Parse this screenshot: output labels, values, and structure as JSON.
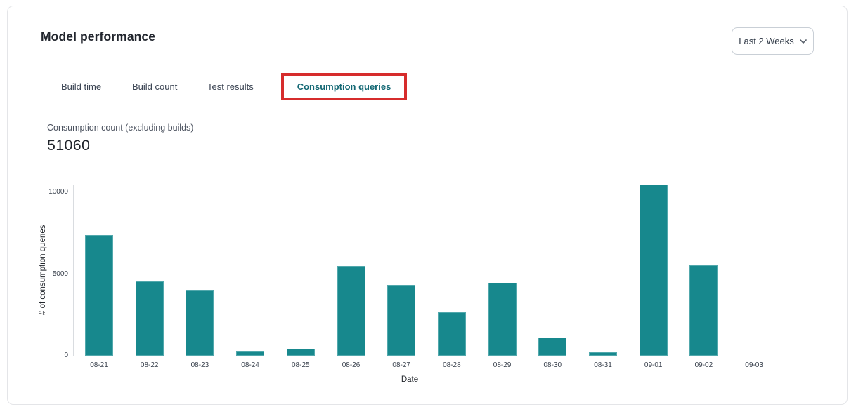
{
  "page": {
    "title": "Model performance"
  },
  "period_selector": {
    "value": "Last 2 Weeks"
  },
  "tabs": [
    {
      "label": "Build time",
      "active": false
    },
    {
      "label": "Build count",
      "active": false
    },
    {
      "label": "Test results",
      "active": false
    },
    {
      "label": "Consumption queries",
      "active": true,
      "annotated": "red-box"
    }
  ],
  "metric": {
    "label": "Consumption count (excluding builds)",
    "value": "51060"
  },
  "chart_data": {
    "type": "bar",
    "categories": [
      "08-21",
      "08-22",
      "08-23",
      "08-24",
      "08-25",
      "08-26",
      "08-27",
      "08-28",
      "08-29",
      "08-30",
      "08-31",
      "09-01",
      "09-02",
      "09-03"
    ],
    "values": [
      7400,
      4570,
      4030,
      315,
      410,
      5490,
      4355,
      2670,
      4460,
      1130,
      200,
      10480,
      5550,
      0
    ],
    "xlabel": "Date",
    "ylabel": "# of consumption queries",
    "yticks": [
      0,
      5000,
      10000
    ],
    "ylim": [
      0,
      10520
    ],
    "grid": false,
    "legend": false,
    "bar_color": "#17888D"
  },
  "colors": {
    "bar_teal": "#17888D",
    "active_tab_teal": "#136874",
    "annotation_red": "#D62C2C"
  }
}
